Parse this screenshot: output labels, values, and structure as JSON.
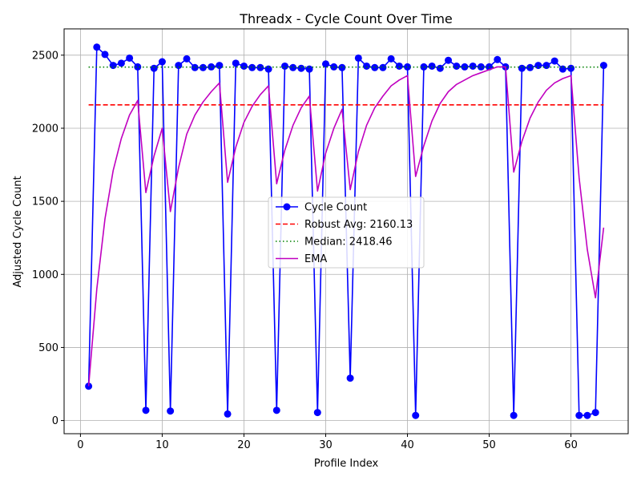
{
  "chart_data": {
    "type": "line",
    "title": "Threadx - Cycle Count Over Time",
    "xlabel": "Profile Index",
    "ylabel": "Adjusted Cycle Count",
    "xlim": [
      -2,
      67
    ],
    "ylim": [
      -90,
      2680
    ],
    "xticks": [
      0,
      10,
      20,
      30,
      40,
      50,
      60
    ],
    "yticks": [
      0,
      500,
      1000,
      1500,
      2000,
      2500
    ],
    "grid": true,
    "legend_position": "center",
    "x": [
      1,
      2,
      3,
      4,
      5,
      6,
      7,
      8,
      9,
      10,
      11,
      12,
      13,
      14,
      15,
      16,
      17,
      18,
      19,
      20,
      21,
      22,
      23,
      24,
      25,
      26,
      27,
      28,
      29,
      30,
      31,
      32,
      33,
      34,
      35,
      36,
      37,
      38,
      39,
      40,
      41,
      42,
      43,
      44,
      45,
      46,
      47,
      48,
      49,
      50,
      51,
      52,
      53,
      54,
      55,
      56,
      57,
      58,
      59,
      60,
      61,
      62,
      63,
      64
    ],
    "series": [
      {
        "name": "Cycle Count",
        "color": "#0000ff",
        "style": "line-marker",
        "values": [
          235,
          2555,
          2505,
          2430,
          2445,
          2480,
          2420,
          70,
          2410,
          2455,
          65,
          2430,
          2475,
          2415,
          2415,
          2420,
          2430,
          45,
          2445,
          2425,
          2415,
          2415,
          2405,
          70,
          2425,
          2415,
          2410,
          2405,
          55,
          2440,
          2420,
          2415,
          290,
          2480,
          2425,
          2415,
          2415,
          2475,
          2425,
          2420,
          35,
          2420,
          2425,
          2410,
          2465,
          2425,
          2420,
          2425,
          2420,
          2420,
          2470,
          2420,
          35,
          2410,
          2415,
          2430,
          2430,
          2460,
          2405,
          2410,
          35,
          35,
          55,
          2430
        ]
      },
      {
        "name": "Robust Avg: 2160.13",
        "color": "#ff0000",
        "style": "dashed",
        "constant": 2160.13,
        "x_range": [
          1,
          64
        ]
      },
      {
        "name": "Median: 2418.46",
        "color": "#008000",
        "style": "dotted",
        "constant": 2418.46,
        "x_range": [
          1,
          64
        ]
      },
      {
        "name": "EMA",
        "color": "#c000c0",
        "style": "line",
        "values": [
          235,
          900,
          1380,
          1710,
          1930,
          2090,
          2190,
          1560,
          1810,
          2000,
          1430,
          1730,
          1960,
          2090,
          2180,
          2250,
          2310,
          1630,
          1870,
          2040,
          2150,
          2230,
          2290,
          1620,
          1850,
          2020,
          2140,
          2220,
          1570,
          1830,
          2000,
          2130,
          1580,
          1840,
          2020,
          2140,
          2220,
          2290,
          2330,
          2360,
          1670,
          1880,
          2050,
          2170,
          2250,
          2300,
          2330,
          2360,
          2380,
          2400,
          2420,
          2420,
          1700,
          1910,
          2070,
          2180,
          2260,
          2310,
          2340,
          2360,
          1660,
          1170,
          840,
          1320
        ]
      }
    ]
  }
}
